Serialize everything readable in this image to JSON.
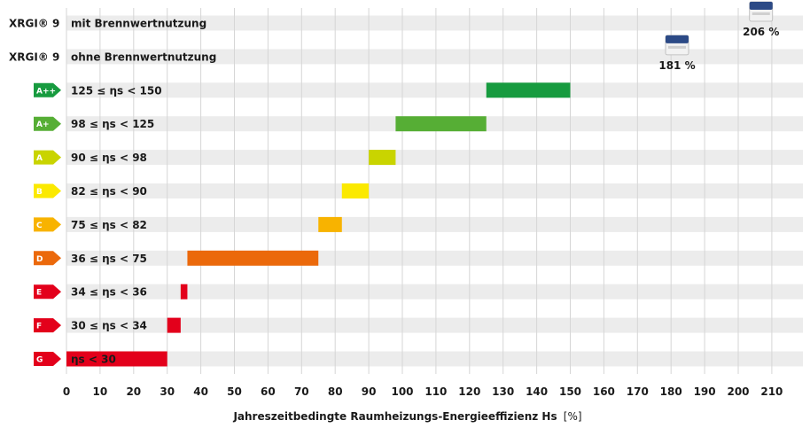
{
  "chart_data": {
    "type": "bar",
    "subtype": "floating-horizontal",
    "xlabel": "Jahreszeitbedingte Raumheizungs-Energieeffizienz Hs",
    "xlabel_unit": "[%]",
    "xlim": [
      0,
      226
    ],
    "xticks": [
      0,
      10,
      20,
      30,
      40,
      50,
      60,
      70,
      80,
      90,
      100,
      110,
      120,
      130,
      140,
      150,
      160,
      170,
      180,
      190,
      200,
      210
    ],
    "grid": "vertical",
    "rows": [
      {
        "label": "mit Brennwertnutzung",
        "prefix": "XRGI® 9",
        "value_label": "206 %",
        "value": 206,
        "marker": "device"
      },
      {
        "label": "ohne Brennwertnutzung",
        "prefix": "XRGI® 9",
        "value_label": "181 %",
        "value": 181,
        "marker": "device"
      },
      {
        "badge": "A++",
        "label": "125 ≤ ηs < 150",
        "start": 125,
        "end": 150,
        "color": "#179b3f"
      },
      {
        "badge": "A+",
        "label": "98 ≤ ηs < 125",
        "start": 98,
        "end": 125,
        "color": "#56ae35"
      },
      {
        "badge": "A",
        "label": "90 ≤ ηs < 98",
        "start": 90,
        "end": 98,
        "color": "#c9d400"
      },
      {
        "badge": "B",
        "label": "82 ≤ ηs < 90",
        "start": 82,
        "end": 90,
        "color": "#fbe900"
      },
      {
        "badge": "C",
        "label": "75 ≤ ηs < 82",
        "start": 75,
        "end": 82,
        "color": "#f8b300"
      },
      {
        "badge": "D",
        "label": "36 ≤ ηs < 75",
        "start": 36,
        "end": 75,
        "color": "#eb690b"
      },
      {
        "badge": "E",
        "label": "34 ≤ ηs < 36",
        "start": 34,
        "end": 36,
        "color": "#e3001b"
      },
      {
        "badge": "F",
        "label": "30 ≤ ηs < 34",
        "start": 30,
        "end": 34,
        "color": "#e3001b"
      },
      {
        "badge": "G",
        "label": "ηs < 30",
        "start": 0,
        "end": 30,
        "color": "#e3001b"
      }
    ]
  },
  "colors": {
    "row_background": "#ececec",
    "grid": "#d6d6d6",
    "text": "#1a1a1a",
    "device_body": "#f2f2f2",
    "device_top": "#2c4a86"
  }
}
